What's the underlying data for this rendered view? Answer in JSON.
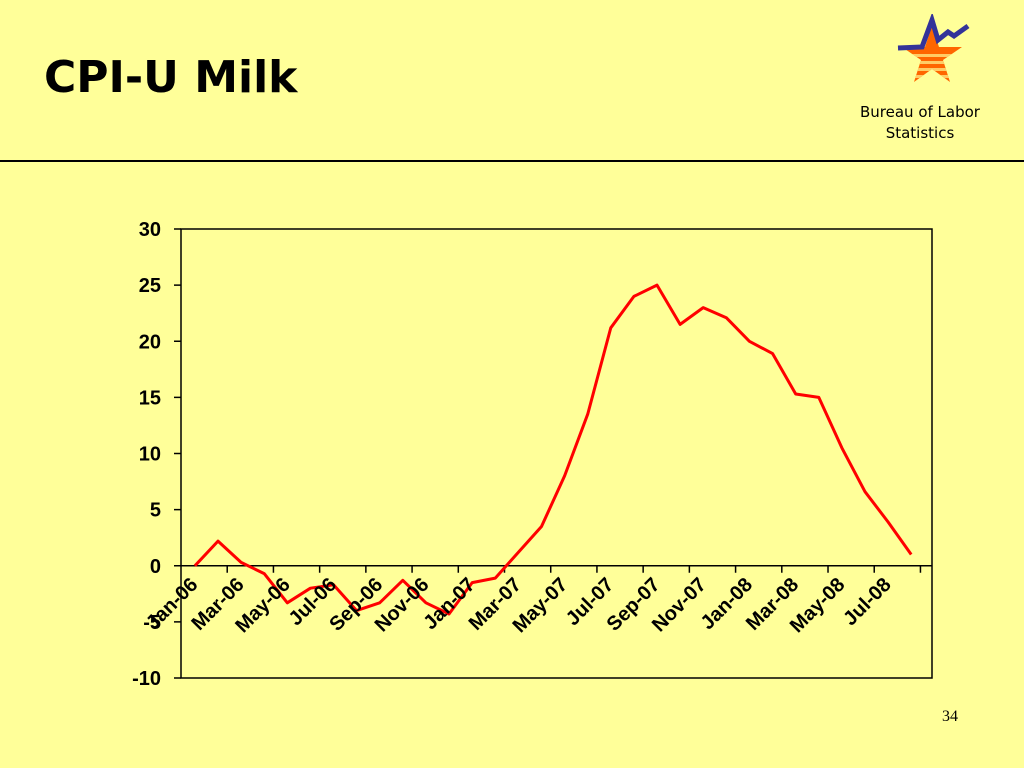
{
  "slide": {
    "title": "CPI-U Milk",
    "organization_line1": "Bureau of Labor",
    "organization_line2": "Statistics",
    "page_number": "34"
  },
  "logo": {
    "icon": "bls-star-logo",
    "colors": {
      "star": "#FF6600",
      "stripes": "#FFCC66",
      "line": "#333399"
    }
  },
  "colors": {
    "background": "#FFFF99",
    "series": "#FF0000",
    "axis": "#000000"
  },
  "chart_data": {
    "type": "line",
    "title": "",
    "xlabel": "",
    "ylabel": "",
    "ylim": [
      -10,
      30
    ],
    "yticks": [
      -10,
      -5,
      0,
      5,
      10,
      15,
      20,
      25,
      30
    ],
    "grid": false,
    "legend": "none",
    "x": [
      "Jan-06",
      "Feb-06",
      "Mar-06",
      "Apr-06",
      "May-06",
      "Jun-06",
      "Jul-06",
      "Aug-06",
      "Sep-06",
      "Oct-06",
      "Nov-06",
      "Dec-06",
      "Jan-07",
      "Feb-07",
      "Mar-07",
      "Apr-07",
      "May-07",
      "Jun-07",
      "Jul-07",
      "Aug-07",
      "Sep-07",
      "Oct-07",
      "Nov-07",
      "Dec-07",
      "Jan-08",
      "Feb-08",
      "Mar-08",
      "Apr-08",
      "May-08",
      "Jun-08",
      "Jul-08",
      "Aug-08"
    ],
    "xtick_labels": [
      "Jan-06",
      "Mar-06",
      "May-06",
      "Jul-06",
      "Sep-06",
      "Nov-06",
      "Jan-07",
      "Mar-07",
      "May-07",
      "Jul-07",
      "Sep-07",
      "Nov-07",
      "Jan-08",
      "Mar-08",
      "May-08",
      "Jul-08"
    ],
    "series": [
      {
        "color": "#FF0000",
        "values": [
          0.0,
          2.2,
          0.3,
          -0.7,
          -3.3,
          -2.0,
          -1.7,
          -4.0,
          -3.3,
          -1.3,
          -3.3,
          -4.3,
          -1.5,
          -1.1,
          1.2,
          3.5,
          8.0,
          13.5,
          21.2,
          24.0,
          25.0,
          21.5,
          23.0,
          22.1,
          20.0,
          18.9,
          15.3,
          15.0,
          10.5,
          6.6,
          3.9,
          1.0
        ]
      }
    ]
  }
}
